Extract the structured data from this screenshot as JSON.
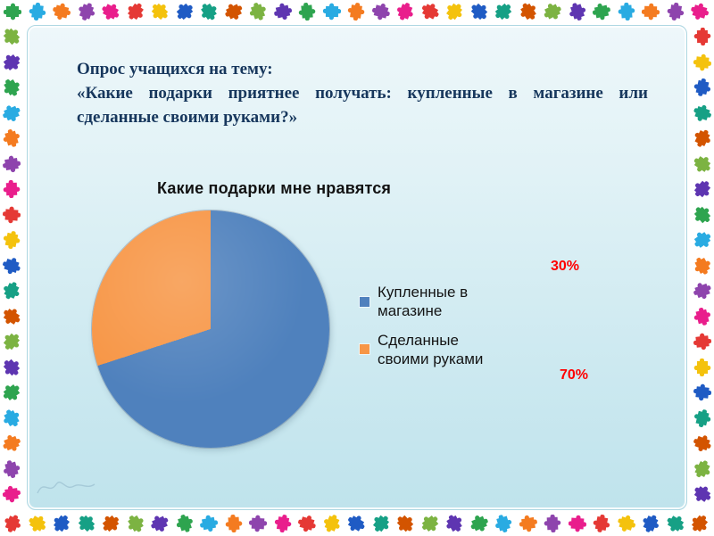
{
  "slide": {
    "heading_line": "Опрос учащихся на тему:",
    "heading_body": "«Какие подарки приятнее получать: купленные в магазине или сделанные своими руками?»"
  },
  "chart_data": {
    "type": "pie",
    "title": "Какие подарки мне нравятся",
    "labels": [
      "Купленные в магазине",
      "Сделанные своими руками"
    ],
    "values": [
      70,
      30
    ],
    "unit": "%",
    "colors": [
      "#4f81bd",
      "#f79646"
    ],
    "legend_position": "right",
    "start_angle_deg": 0,
    "direction": "clockwise"
  },
  "annotations": [
    {
      "text": "30%",
      "color": "#ff0000"
    },
    {
      "text": "70%",
      "color": "#ff0000"
    }
  ],
  "border": {
    "palette": [
      "#2ea44f",
      "#29abe2",
      "#f47b20",
      "#8e44ad",
      "#e91e8c",
      "#e53935",
      "#f4c20d",
      "#1f5bc4",
      "#16a085",
      "#d35400",
      "#7cb342",
      "#5e35b1"
    ]
  }
}
